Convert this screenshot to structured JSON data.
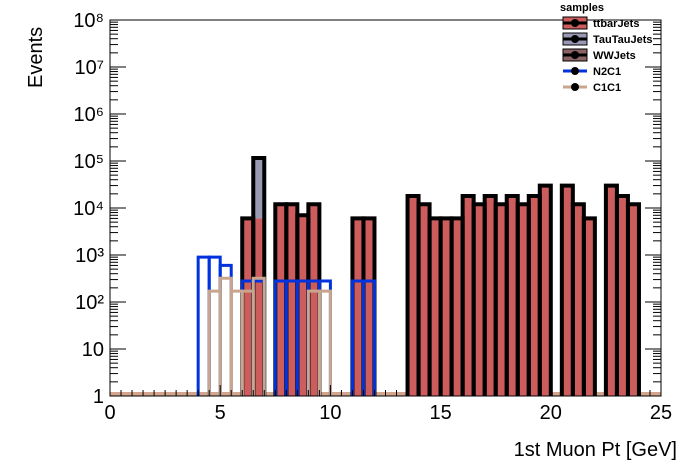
{
  "chart_data": {
    "type": "area",
    "xlabel": "1st Muon Pt [GeV]",
    "ylabel": "Events",
    "xlim": [
      0,
      25
    ],
    "ylim": [
      1,
      100000000
    ],
    "y_scale": "log",
    "x_ticks": [
      0,
      5,
      10,
      15,
      20,
      25
    ],
    "x_tick_labels": [
      "0",
      "5",
      "10",
      "15",
      "20",
      "25"
    ],
    "y_ticks": [
      1,
      10,
      100,
      1000,
      10000,
      100000,
      1000000,
      10000000,
      100000000
    ],
    "y_tick_labels": [
      "1",
      "10",
      "10²",
      "10³",
      "10⁴",
      "10⁵",
      "10⁶",
      "10⁷",
      "10⁸"
    ],
    "grid": false,
    "legend_title": "samples",
    "legend_position": "top-right",
    "bin_width": 0.5,
    "stacked_series": [
      {
        "name": "ttbarJets",
        "color": "#cd5c5c",
        "bins": [
          [
            6.0,
            6000
          ],
          [
            6.5,
            6000
          ],
          [
            7.5,
            12000
          ],
          [
            8.0,
            12000
          ],
          [
            8.5,
            7000
          ],
          [
            9.0,
            12000
          ],
          [
            11.0,
            6000
          ],
          [
            11.5,
            6000
          ],
          [
            13.5,
            18000
          ],
          [
            14.0,
            12000
          ],
          [
            14.5,
            6000
          ],
          [
            15.0,
            6000
          ],
          [
            15.5,
            6000
          ],
          [
            16.0,
            18000
          ],
          [
            16.5,
            12000
          ],
          [
            17.0,
            18000
          ],
          [
            17.5,
            12000
          ],
          [
            18.0,
            18000
          ],
          [
            18.5,
            12000
          ],
          [
            19.0,
            18000
          ],
          [
            19.5,
            30000
          ],
          [
            20.5,
            30000
          ],
          [
            21.0,
            12000
          ],
          [
            21.5,
            6000
          ],
          [
            22.5,
            30000
          ],
          [
            23.0,
            18000
          ],
          [
            23.5,
            12000
          ]
        ]
      },
      {
        "name": "TauTauJets",
        "color": "#9999b3",
        "bins": [
          [
            6.5,
            110000
          ]
        ]
      },
      {
        "name": "WWJets",
        "color": "#8c6464",
        "bins": []
      }
    ],
    "line_series": [
      {
        "name": "N2C1",
        "color": "#0033dd",
        "bins": [
          [
            4.0,
            900
          ],
          [
            4.5,
            900
          ],
          [
            5.0,
            600
          ],
          [
            6.0,
            280
          ],
          [
            6.5,
            280
          ],
          [
            7.5,
            280
          ],
          [
            8.0,
            280
          ],
          [
            8.5,
            280
          ],
          [
            9.0,
            280
          ],
          [
            9.5,
            280
          ],
          [
            11.0,
            280
          ],
          [
            11.5,
            280
          ]
        ]
      },
      {
        "name": "C1C1",
        "color": "#c8a58c",
        "bins": [
          [
            4.5,
            170
          ],
          [
            5.0,
            320
          ],
          [
            5.5,
            170
          ],
          [
            6.0,
            170
          ],
          [
            6.5,
            320
          ],
          [
            9.0,
            170
          ],
          [
            9.5,
            170
          ]
        ]
      }
    ]
  }
}
